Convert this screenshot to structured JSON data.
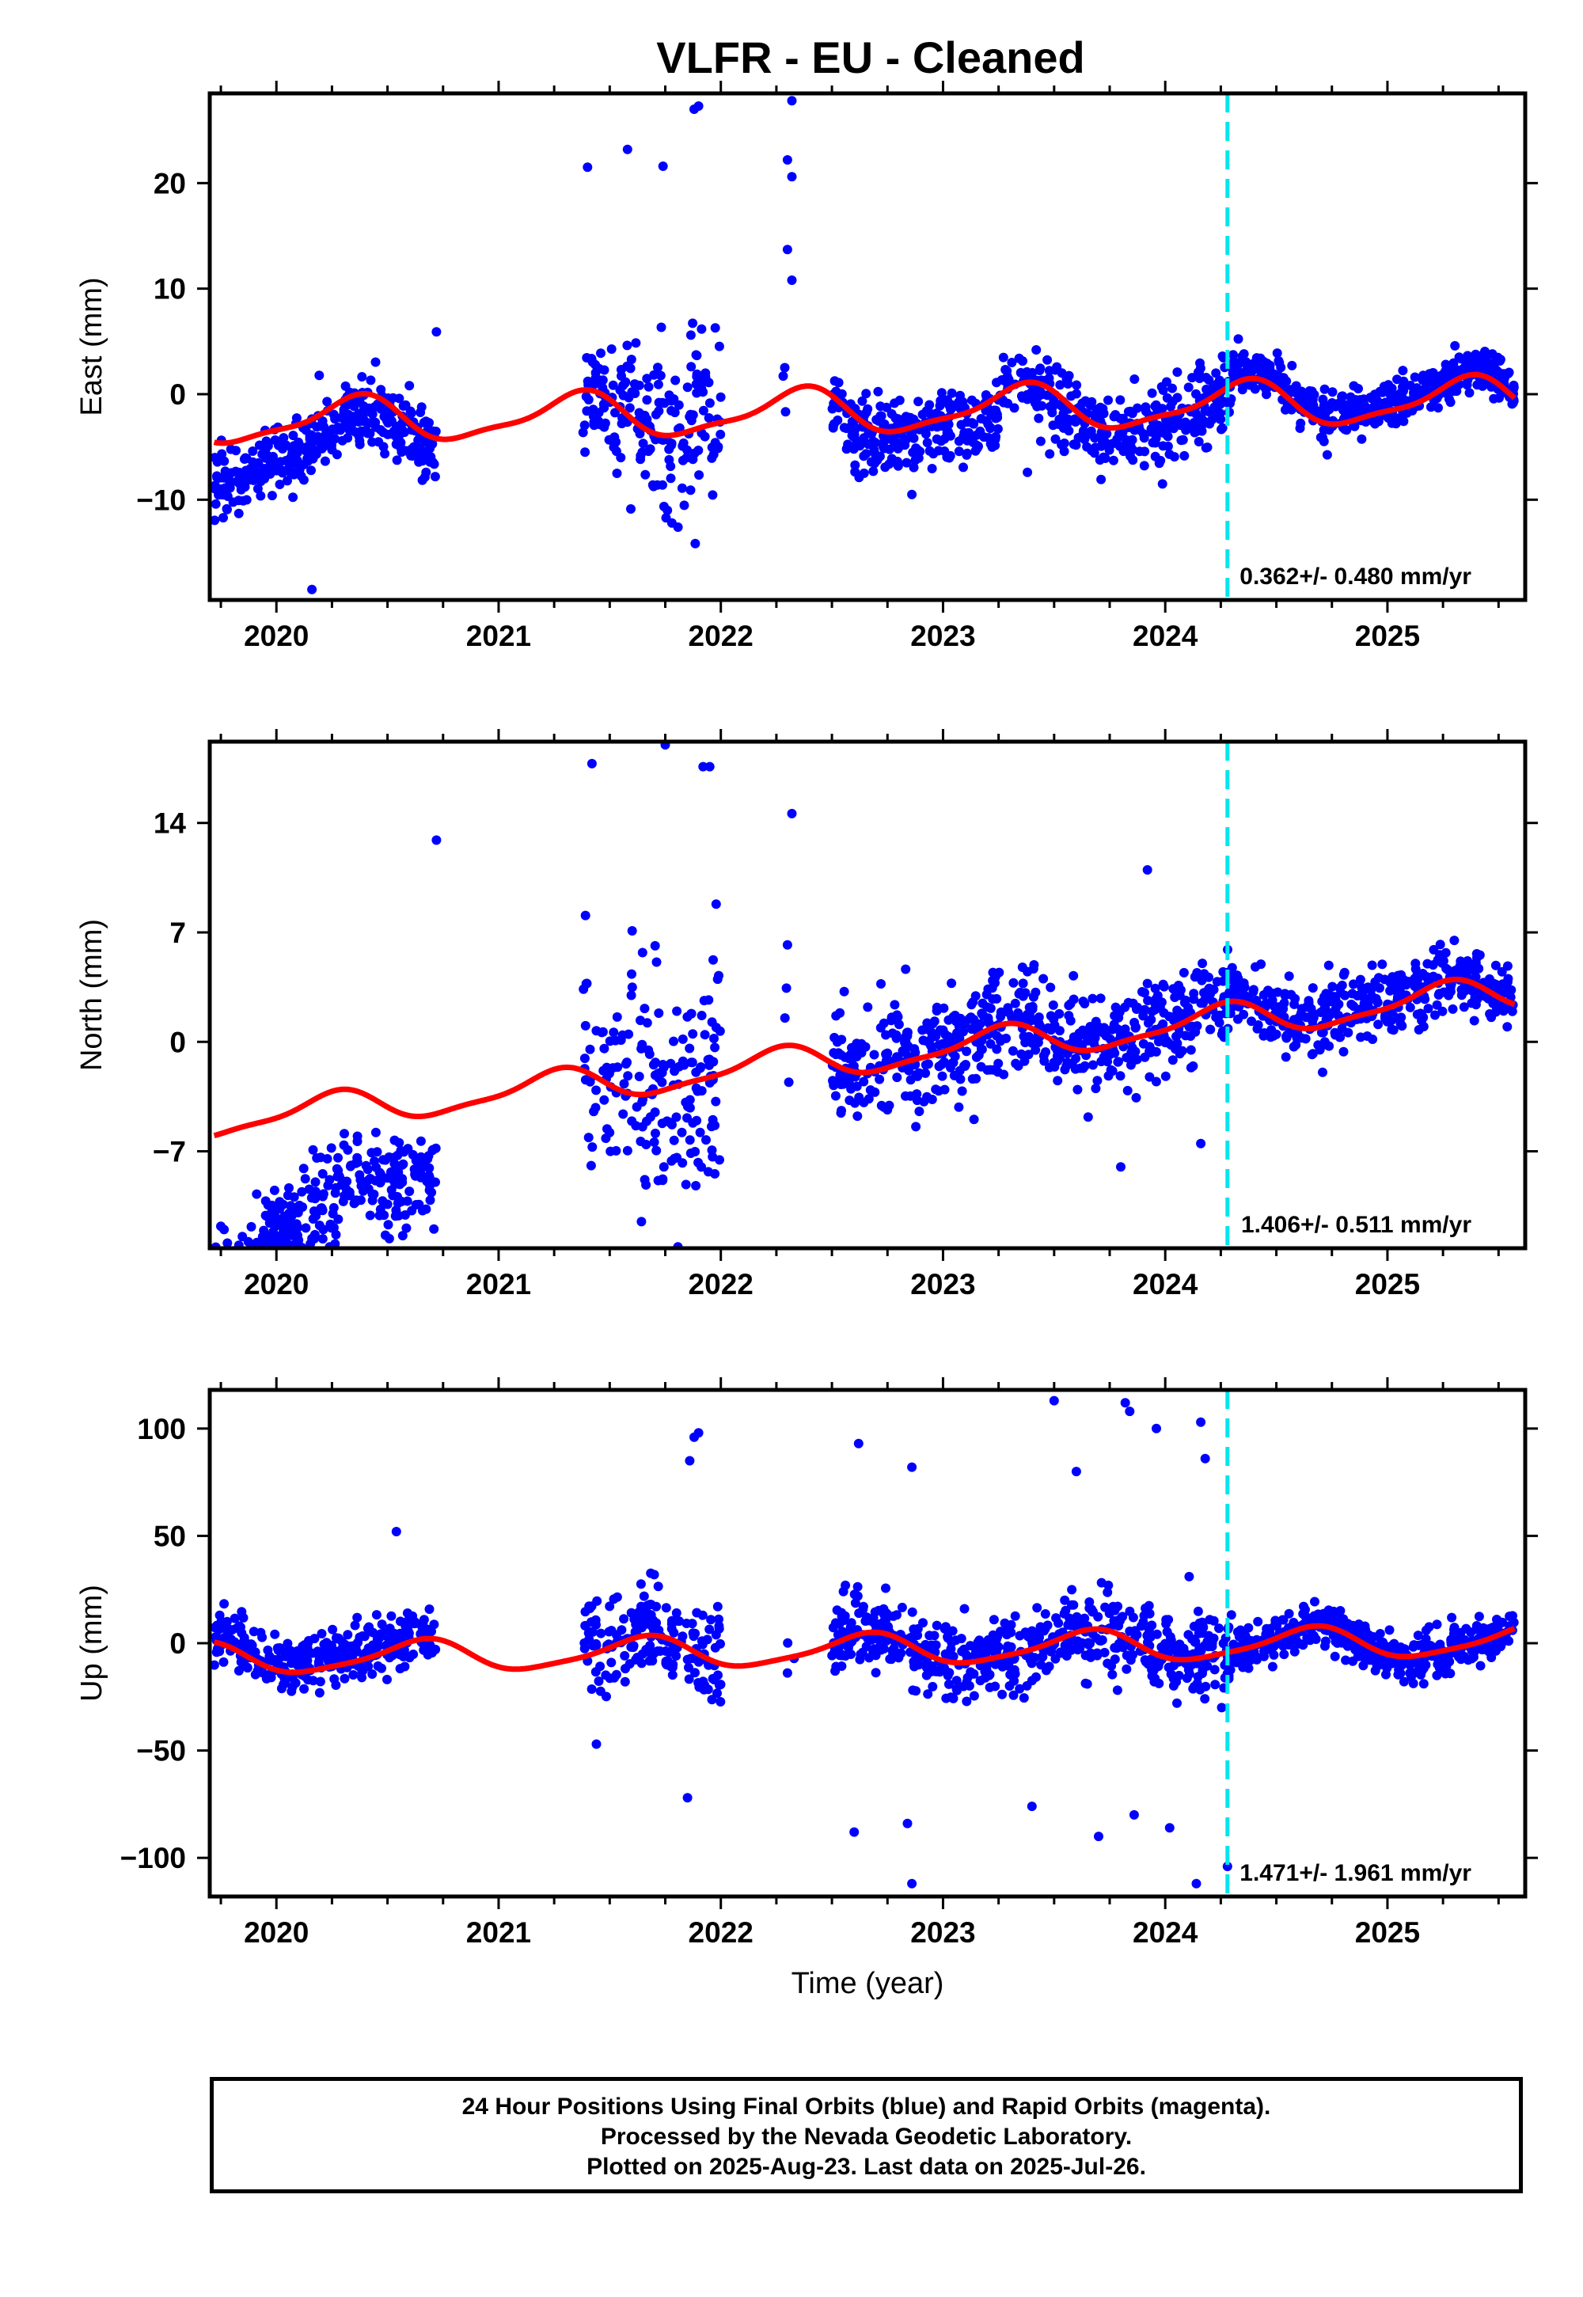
{
  "title": "VLFR  - EU - Cleaned",
  "footer": {
    "line1": "24 Hour Positions Using Final Orbits (blue) and Rapid Orbits (magenta).",
    "line2": "Processed by the Nevada Geodetic Laboratory.",
    "line3": "Plotted on 2025-Aug-23. Last data on 2025-Jul-26."
  },
  "colors": {
    "data_points": "#0000ff",
    "model_fit": "#ff0000",
    "break_line": "#00e5ee"
  },
  "chart_data": [
    {
      "type": "scatter",
      "component": "east",
      "ylabel": "East (mm)",
      "xlabel": "",
      "xlim": [
        2019.7,
        2025.62
      ],
      "ylim": [
        -19.5,
        28.5
      ],
      "xticks": [
        2020,
        2021,
        2022,
        2023,
        2024,
        2025
      ],
      "yticks": [
        20,
        10,
        0,
        -10
      ],
      "ytick_labels": [
        "20",
        "10",
        "0",
        "−10"
      ],
      "rate_text": "0.362+/- 0.480 mm/yr",
      "break_year": 2024.28,
      "model": {
        "offset": -1.6,
        "trend": 0.362,
        "annual_amp": 2.0,
        "annual_phase": 0.1,
        "semi_amp": 0.6,
        "semi_phase": 0.3
      },
      "segments": [
        {
          "start": 2019.72,
          "end": 2020.72,
          "offset": -2.0,
          "drift": 2.5,
          "scatter": 1.6,
          "density": 340
        },
        {
          "start": 2021.38,
          "end": 2022.0,
          "offset": 0.0,
          "drift": 0.0,
          "scatter": 3.8,
          "density": 300
        },
        {
          "start": 2022.28,
          "end": 2022.33,
          "offset": 0.0,
          "drift": 0.0,
          "scatter": 4.0,
          "density": 60
        },
        {
          "start": 2022.5,
          "end": 2024.3,
          "offset": -0.8,
          "drift": 0.0,
          "scatter": 1.9,
          "density": 330
        },
        {
          "start": 2024.3,
          "end": 2025.57,
          "offset": 0.8,
          "drift": 0.0,
          "scatter": 1.0,
          "density": 340
        }
      ],
      "outliers": [
        {
          "x": 2020.16,
          "y": -18.5
        },
        {
          "x": 2021.4,
          "y": 21.5
        },
        {
          "x": 2021.58,
          "y": 23.2
        },
        {
          "x": 2021.74,
          "y": 21.6
        },
        {
          "x": 2021.78,
          "y": -12.2
        },
        {
          "x": 2021.88,
          "y": 27.0
        },
        {
          "x": 2021.9,
          "y": 27.3
        },
        {
          "x": 2022.32,
          "y": 27.8
        },
        {
          "x": 2022.3,
          "y": 22.2
        },
        {
          "x": 2022.32,
          "y": 20.6
        },
        {
          "x": 2022.3,
          "y": 13.7
        },
        {
          "x": 2022.32,
          "y": 10.8
        },
        {
          "x": 2020.72,
          "y": 5.9
        },
        {
          "x": 2022.86,
          "y": -9.5
        },
        {
          "x": 2023.38,
          "y": -7.4
        }
      ]
    },
    {
      "type": "scatter",
      "component": "north",
      "ylabel": "North (mm)",
      "xlabel": "",
      "xlim": [
        2019.7,
        2025.62
      ],
      "ylim": [
        -13.2,
        19.2
      ],
      "xticks": [
        2020,
        2021,
        2022,
        2023,
        2024,
        2025
      ],
      "yticks": [
        14,
        7,
        0,
        -7
      ],
      "ytick_labels": [
        "14",
        "7",
        "0",
        "−7"
      ],
      "rate_text": "1.406+/- 0.511 mm/yr",
      "break_year": 2024.28,
      "model": {
        "offset": -0.9,
        "trend": 1.406,
        "annual_amp": 1.0,
        "annual_phase": 0.0,
        "semi_amp": 0.3,
        "semi_phase": 0.2
      },
      "segments": [
        {
          "start": 2019.72,
          "end": 2020.72,
          "offset": -6.0,
          "drift": 6.0,
          "scatter": 1.5,
          "density": 340
        },
        {
          "start": 2021.38,
          "end": 2022.0,
          "offset": 0.5,
          "drift": 0.0,
          "scatter": 4.0,
          "density": 300
        },
        {
          "start": 2022.28,
          "end": 2022.33,
          "offset": 0.0,
          "drift": 0.0,
          "scatter": 3.0,
          "density": 60
        },
        {
          "start": 2022.5,
          "end": 2024.3,
          "offset": 0.2,
          "drift": 0.0,
          "scatter": 1.6,
          "density": 330
        },
        {
          "start": 2024.3,
          "end": 2025.57,
          "offset": 0.3,
          "drift": 0.0,
          "scatter": 1.1,
          "density": 340
        }
      ],
      "outliers": [
        {
          "x": 2019.75,
          "y": -11.8
        },
        {
          "x": 2020.17,
          "y": -12.6
        },
        {
          "x": 2020.72,
          "y": 12.9
        },
        {
          "x": 2021.42,
          "y": 17.8
        },
        {
          "x": 2021.75,
          "y": 19.0
        },
        {
          "x": 2021.95,
          "y": 17.6
        },
        {
          "x": 2021.92,
          "y": 17.6
        },
        {
          "x": 2022.32,
          "y": 14.6
        },
        {
          "x": 2022.3,
          "y": 6.2
        },
        {
          "x": 2023.92,
          "y": 11.0
        },
        {
          "x": 2023.8,
          "y": -8.0
        },
        {
          "x": 2024.16,
          "y": -6.5
        }
      ]
    },
    {
      "type": "scatter",
      "component": "up",
      "ylabel": "Up (mm)",
      "xlabel": "Time (year)",
      "xlim": [
        2019.7,
        2025.62
      ],
      "ylim": [
        -118,
        118
      ],
      "xticks": [
        2020,
        2021,
        2022,
        2023,
        2024,
        2025
      ],
      "yticks": [
        100,
        50,
        0,
        -50,
        -100
      ],
      "ytick_labels": [
        "100",
        "50",
        "0",
        "−50",
        "−100"
      ],
      "rate_text": "1.471+/- 1.961 mm/yr",
      "break_year": 2024.28,
      "model": {
        "offset": -3.0,
        "trend": 1.471,
        "annual_amp": 7.0,
        "annual_phase": 0.4,
        "semi_amp": 1.5,
        "semi_phase": 0.1
      },
      "segments": [
        {
          "start": 2019.72,
          "end": 2020.72,
          "offset": 3.0,
          "drift": 0.0,
          "scatter": 6.0,
          "density": 340
        },
        {
          "start": 2021.38,
          "end": 2022.0,
          "offset": 3.0,
          "drift": 0.0,
          "scatter": 10.0,
          "density": 300
        },
        {
          "start": 2022.28,
          "end": 2022.33,
          "offset": 0.0,
          "drift": 0.0,
          "scatter": 10.0,
          "density": 60
        },
        {
          "start": 2022.5,
          "end": 2024.3,
          "offset": 0.0,
          "drift": 0.0,
          "scatter": 9.0,
          "density": 330
        },
        {
          "start": 2024.3,
          "end": 2025.57,
          "offset": 0.0,
          "drift": 0.0,
          "scatter": 5.0,
          "density": 340
        }
      ],
      "outliers": [
        {
          "x": 2021.88,
          "y": 96.0
        },
        {
          "x": 2021.9,
          "y": 98.0
        },
        {
          "x": 2021.86,
          "y": 85.0
        },
        {
          "x": 2021.85,
          "y": -72.0
        },
        {
          "x": 2022.62,
          "y": 93.0
        },
        {
          "x": 2022.86,
          "y": -112.0
        },
        {
          "x": 2022.86,
          "y": 82.0
        },
        {
          "x": 2022.6,
          "y": -88.0
        },
        {
          "x": 2023.5,
          "y": 113.0
        },
        {
          "x": 2023.82,
          "y": 112.0
        },
        {
          "x": 2023.84,
          "y": 108.0
        },
        {
          "x": 2023.96,
          "y": 100.0
        },
        {
          "x": 2024.16,
          "y": 103.0
        },
        {
          "x": 2024.18,
          "y": 86.0
        },
        {
          "x": 2024.14,
          "y": -112.0
        },
        {
          "x": 2024.28,
          "y": -104.0
        },
        {
          "x": 2020.54,
          "y": 52.0
        },
        {
          "x": 2023.7,
          "y": -90.0
        },
        {
          "x": 2023.4,
          "y": -76.0
        },
        {
          "x": 2022.84,
          "y": -84.0
        },
        {
          "x": 2021.44,
          "y": -47.0
        },
        {
          "x": 2023.6,
          "y": 80.0
        },
        {
          "x": 2023.86,
          "y": -80.0
        },
        {
          "x": 2024.02,
          "y": -86.0
        }
      ]
    }
  ]
}
